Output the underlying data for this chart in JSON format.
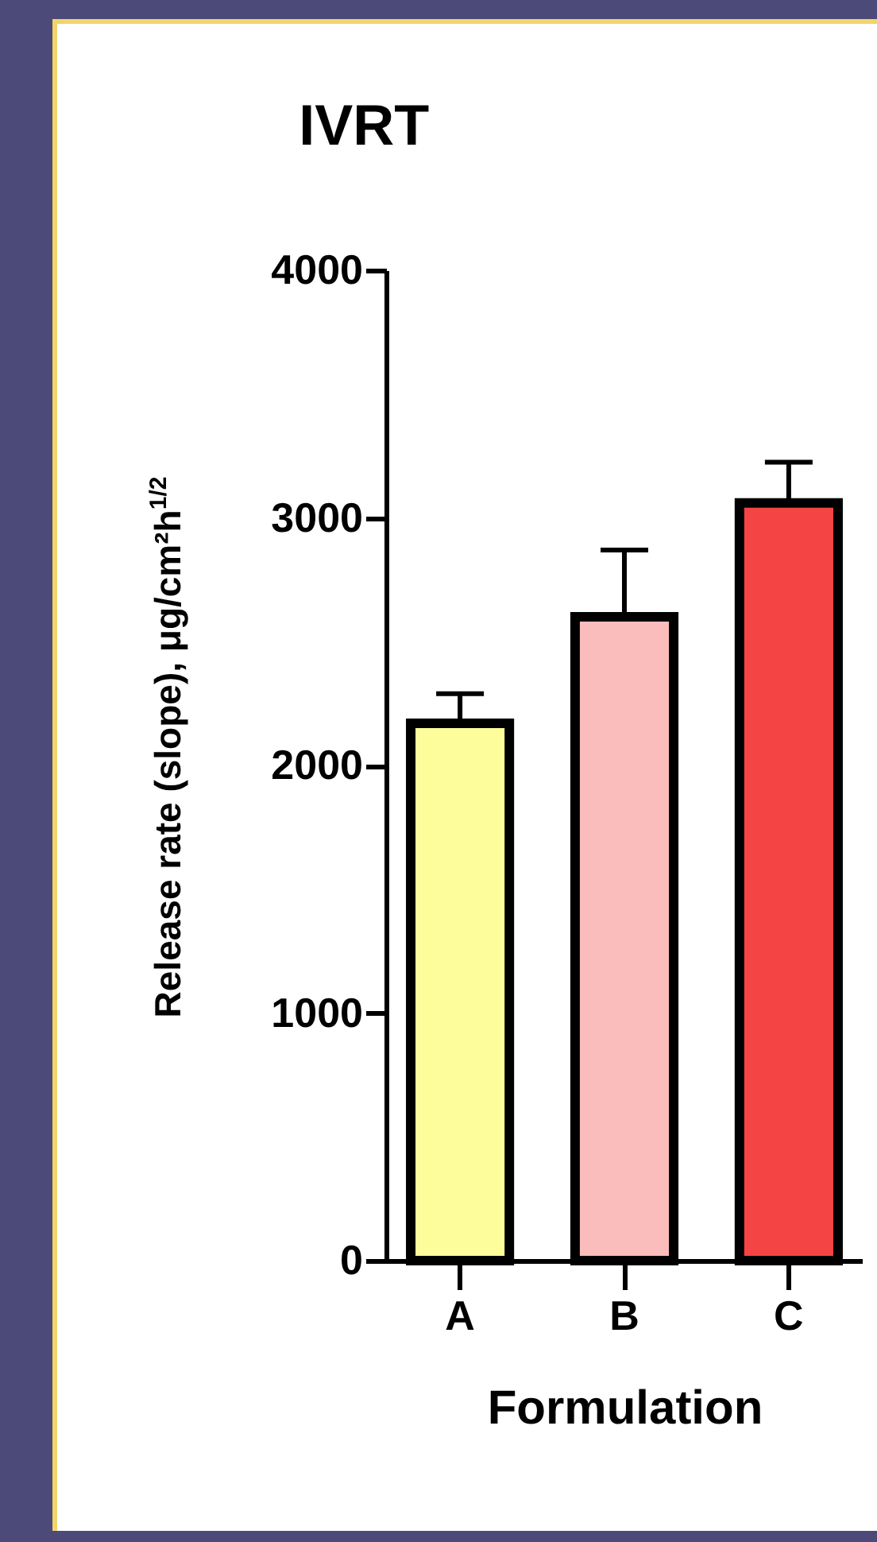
{
  "chart_data": {
    "type": "bar",
    "title": "IVRT",
    "xlabel": "Formulation",
    "ylabel": "Release rate (slope), μg/cm²h$^{1/2}$",
    "categories": [
      "A",
      "B",
      "C"
    ],
    "values": [
      2170,
      2600,
      3060
    ],
    "colors": [
      "#fdfd9c",
      "#fbbcbc",
      "#f54444"
    ],
    "errors": [
      [
        2170,
        2290
      ],
      [
        2600,
        2870
      ],
      [
        3060,
        3225
      ]
    ],
    "ylim": [
      0,
      4000
    ],
    "yticks": [
      0,
      1000,
      2000,
      3000,
      4000
    ]
  }
}
